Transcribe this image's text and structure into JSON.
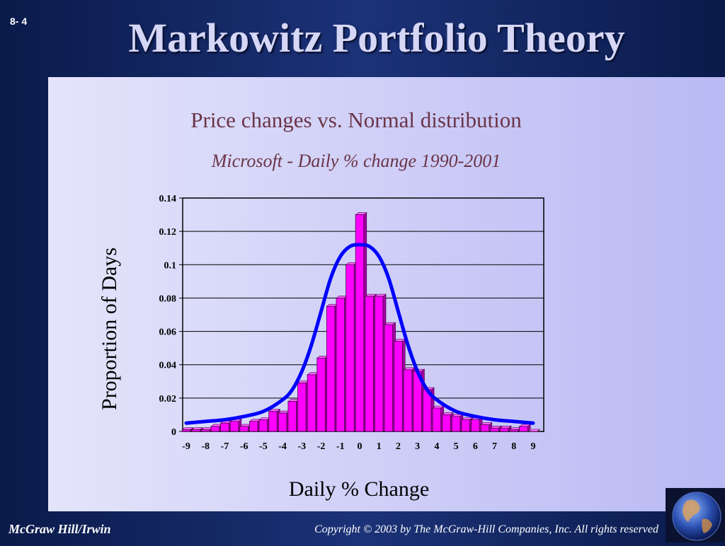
{
  "slide": {
    "number": "8- 4",
    "title": "Markowitz Portfolio Theory",
    "footer_left": "McGraw Hill/Irwin",
    "footer_right": "Copyright © 2003 by The McGraw-Hill Companies, Inc. All rights reserved"
  },
  "colors": {
    "bar_fill": "#ff00ff",
    "bar_edge": "#4a004a",
    "curve": "#0000ff",
    "title_text": "#6b3447"
  },
  "icons": [
    "globe-icon"
  ],
  "chart_data": {
    "type": "bar",
    "title": "Price changes vs. Normal distribution",
    "subtitle": "Microsoft - Daily % change 1990-2001",
    "xlabel": "Daily % Change",
    "ylabel": "Proportion of Days",
    "ylim": [
      0,
      0.14
    ],
    "yticks": [
      "0",
      "0.02",
      "0.04",
      "0.06",
      "0.08",
      "0.1",
      "0.12",
      "0.14"
    ],
    "ytick_values": [
      0,
      0.02,
      0.04,
      0.06,
      0.08,
      0.1,
      0.12,
      0.14
    ],
    "xticks": [
      "-9",
      "-8",
      "-7",
      "-6",
      "-5",
      "-4",
      "-3",
      "-2",
      "-1",
      "0",
      "1",
      "2",
      "3",
      "4",
      "5",
      "6",
      "7",
      "8",
      "9"
    ],
    "grid": true,
    "categories": [
      "-9",
      "-8.5",
      "-8",
      "-7.5",
      "-7",
      "-6.5",
      "-6",
      "-5.5",
      "-5",
      "-4.5",
      "-4",
      "-3.5",
      "-3",
      "-2.5",
      "-2",
      "-1.5",
      "-1",
      "-0.5",
      "0",
      "0.5",
      "1",
      "1.5",
      "2",
      "2.5",
      "3",
      "3.5",
      "4",
      "4.5",
      "5",
      "5.5",
      "6",
      "6.5",
      "7",
      "7.5",
      "8",
      "8.5",
      "9"
    ],
    "series": [
      {
        "type": "bar",
        "values": [
          0.001,
          0.001,
          0.001,
          0.003,
          0.005,
          0.006,
          0.003,
          0.006,
          0.007,
          0.012,
          0.011,
          0.018,
          0.029,
          0.034,
          0.044,
          0.075,
          0.08,
          0.1,
          0.13,
          0.081,
          0.081,
          0.064,
          0.054,
          0.037,
          0.036,
          0.025,
          0.014,
          0.01,
          0.009,
          0.007,
          0.007,
          0.004,
          0.002,
          0.002,
          0.001,
          0.003,
          0.0
        ]
      },
      {
        "type": "line",
        "x": [
          -9,
          -8,
          -7,
          -6,
          -5,
          -4,
          -3.5,
          -3,
          -2.5,
          -2,
          -1.5,
          -1,
          -0.5,
          0,
          0.5,
          1,
          1.5,
          2,
          2.5,
          3,
          3.5,
          4,
          5,
          6,
          7,
          8,
          9
        ],
        "values": [
          0.005,
          0.006,
          0.007,
          0.009,
          0.012,
          0.019,
          0.025,
          0.036,
          0.052,
          0.072,
          0.092,
          0.105,
          0.111,
          0.112,
          0.111,
          0.105,
          0.092,
          0.072,
          0.052,
          0.036,
          0.025,
          0.019,
          0.012,
          0.009,
          0.007,
          0.006,
          0.005
        ]
      }
    ]
  }
}
